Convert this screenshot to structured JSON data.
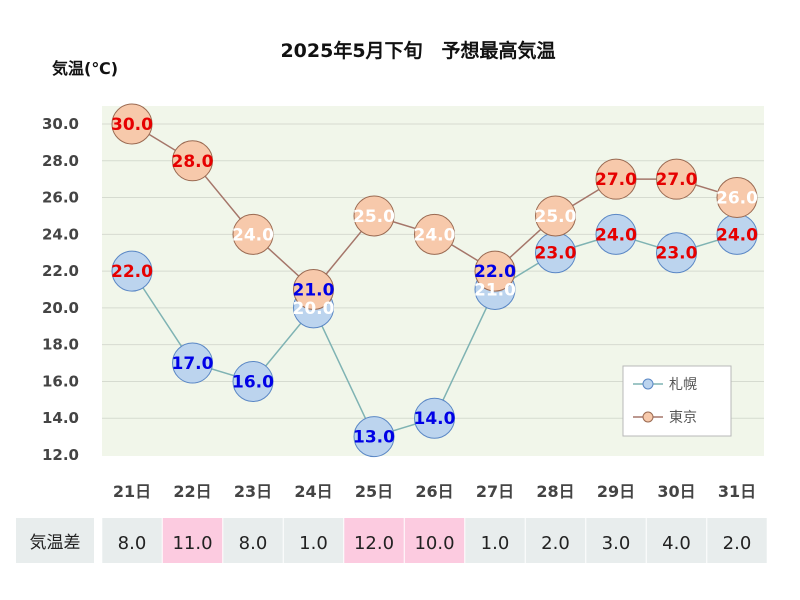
{
  "chart_data": {
    "type": "line",
    "title": "2025年5月下旬　予想最高気温",
    "ylabel": "気温(℃)",
    "ylim": [
      12,
      30
    ],
    "yticks": [
      "12.0",
      "14.0",
      "16.0",
      "18.0",
      "20.0",
      "22.0",
      "24.0",
      "26.0",
      "28.0",
      "30.0"
    ],
    "categories": [
      "21日",
      "22日",
      "23日",
      "24日",
      "25日",
      "26日",
      "27日",
      "28日",
      "29日",
      "30日",
      "31日"
    ],
    "series": [
      {
        "name": "札幌",
        "values": [
          22.0,
          17.0,
          16.0,
          20.0,
          13.0,
          14.0,
          21.0,
          23.0,
          24.0,
          23.0,
          24.0
        ],
        "labels": [
          "22.0",
          "17.0",
          "16.0",
          "20.0",
          "13.0",
          "14.0",
          "21.0",
          "23.0",
          "24.0",
          "23.0",
          "24.0"
        ]
      },
      {
        "name": "東京",
        "values": [
          30.0,
          28.0,
          24.0,
          21.0,
          25.0,
          24.0,
          22.0,
          25.0,
          27.0,
          27.0,
          26.0
        ],
        "labels": [
          "30.0",
          "28.0",
          "24.0",
          "21.0",
          "25.0",
          "24.0",
          "22.0",
          "25.0",
          "27.0",
          "27.0",
          "26.0"
        ]
      }
    ],
    "grid": true,
    "legend_position": "bottom-right",
    "difference_row": {
      "label": "気温差",
      "values": [
        "8.0",
        "11.0",
        "8.0",
        "1.0",
        "12.0",
        "10.0",
        "1.0",
        "2.0",
        "3.0",
        "4.0",
        "2.0"
      ],
      "highlighted": [
        false,
        true,
        false,
        false,
        true,
        true,
        false,
        false,
        false,
        false,
        false
      ]
    }
  },
  "colors": {
    "plot_background": "#f1f6ea",
    "gridline": "#d6dbd0",
    "sapporo_fill": "#bcd4ee",
    "sapporo_stroke": "#5a87c5",
    "sapporo_line": "#7fb3b3",
    "tokyo_fill": "#f7c9ab",
    "tokyo_stroke": "#9a6a52",
    "tokyo_line": "#a5766a",
    "label_blue": "#0000e6",
    "label_red": "#e60000",
    "label_white": "#ffffff",
    "diff_cell": "#e8eded",
    "diff_cell_highlight": "#fccbe0"
  },
  "label_colors": {
    "sapporo": [
      "red",
      "blue",
      "blue",
      "white",
      "blue",
      "blue",
      "white",
      "red",
      "red",
      "red",
      "red"
    ],
    "tokyo": [
      "red",
      "red",
      "white",
      "blue",
      "white",
      "white",
      "blue",
      "white",
      "red",
      "red",
      "white"
    ]
  }
}
